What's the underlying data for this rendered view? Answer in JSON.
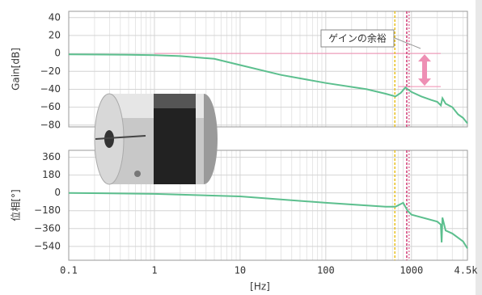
{
  "chart_data": [
    {
      "type": "line",
      "y_label": "Gain[dB]",
      "x": [
        0.1,
        0.5,
        1,
        2,
        5,
        10,
        30,
        100,
        300,
        500,
        650,
        750,
        850,
        1000,
        1300,
        1700,
        2000,
        2200,
        2300,
        2500,
        3000,
        3500,
        4000,
        4500
      ],
      "series": [
        {
          "name": "Gain",
          "color": "#5cbf8e",
          "values": [
            -1,
            -1.5,
            -2,
            -3,
            -6,
            -13,
            -24,
            -33,
            -40,
            -45,
            -48,
            -44,
            -38,
            -43,
            -48,
            -52,
            -54,
            -58,
            -50,
            -56,
            -60,
            -68,
            -72,
            -78
          ]
        }
      ],
      "xlim": [
        0.1,
        4500
      ],
      "xticks": [
        0.1,
        1,
        10,
        100,
        1000
      ],
      "log_x": true,
      "ylim": [
        -82,
        47
      ],
      "yticks": [
        40,
        20,
        0,
        {
          "value": -20,
          "label": "−20"
        },
        {
          "value": -40,
          "label": "−40"
        },
        {
          "value": -60,
          "label": "−60"
        },
        {
          "value": -80,
          "label": "−80"
        }
      ],
      "grid": true,
      "vlines": [
        {
          "x": 640,
          "color": "#e8c020"
        },
        {
          "x": 880,
          "color": "#d8407a"
        }
      ],
      "hlines": [
        {
          "y": 0,
          "color": "#f08cb0"
        },
        {
          "y": -37,
          "color": "#f08cb0"
        }
      ],
      "annotation": "ゲインの余裕"
    },
    {
      "type": "line",
      "y_label": "位相[°]",
      "x_label": "[Hz]",
      "x": [
        0.1,
        1,
        10,
        100,
        500,
        650,
        800,
        900,
        1000,
        2000,
        2200,
        2250,
        2300,
        2500,
        3000,
        4000,
        4500
      ],
      "series": [
        {
          "name": "Phase",
          "color": "#5cbf8e",
          "values": [
            0,
            -10,
            -35,
            -100,
            -140,
            -140,
            -100,
            -180,
            -220,
            -290,
            -320,
            -500,
            -250,
            -380,
            -410,
            -490,
            -560
          ]
        }
      ],
      "xlim": [
        0.1,
        4500
      ],
      "xticks": [
        0.1,
        1,
        10,
        100,
        1000,
        {
          "value": 4500,
          "label": "4.5k"
        }
      ],
      "log_x": true,
      "ylim": [
        -680,
        430
      ],
      "yticks": [
        360,
        180,
        0,
        {
          "value": -180,
          "label": "−180"
        },
        {
          "value": -360,
          "label": "−360"
        },
        {
          "value": -540,
          "label": "−540"
        }
      ],
      "grid": true,
      "vlines": [
        {
          "x": 640,
          "color": "#e8c020"
        },
        {
          "x": 880,
          "color": "#d8407a"
        }
      ]
    }
  ]
}
